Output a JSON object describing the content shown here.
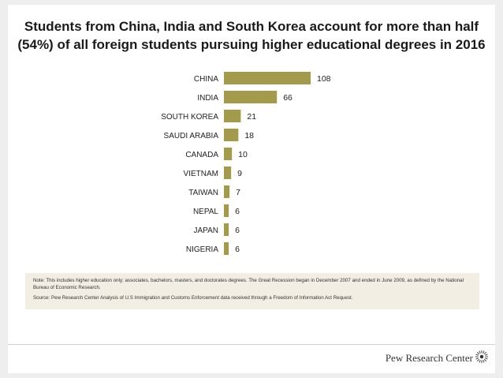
{
  "title": "Students from China, India and South Korea account for more than half (54%) of all foreign students pursuing higher educational degrees in 2016",
  "chart_data": {
    "type": "bar",
    "orientation": "horizontal",
    "categories": [
      "CHINA",
      "INDIA",
      "SOUTH KOREA",
      "SAUDI ARABIA",
      "CANADA",
      "VIETNAM",
      "TAIWAN",
      "NEPAL",
      "JAPAN",
      "NIGERIA"
    ],
    "values": [
      108,
      66,
      21,
      18,
      10,
      9,
      7,
      6,
      6,
      6
    ],
    "value_labels": [
      "108",
      "66",
      "21",
      "18",
      "10",
      "9",
      "7",
      "6",
      "6",
      "6"
    ],
    "xlim": [
      0,
      108
    ],
    "bar_color": "#a39a4b",
    "grid": false,
    "legend": "none"
  },
  "notes": {
    "note": "Note: This includes higher education only; associates, bachelors, masters, and doctorates degrees. The Great Recession began in December 2007 and ended in June 2009, as defined by the National Bureau of Economic Research.",
    "source": "Source: Pew Research Center Analysis of U.S Immigration and Customs Enforcement data received through a Freedom of Information Act Request."
  },
  "brand": {
    "name": "Pew Research Center",
    "logo_icon": "pew-sunburst-icon"
  }
}
